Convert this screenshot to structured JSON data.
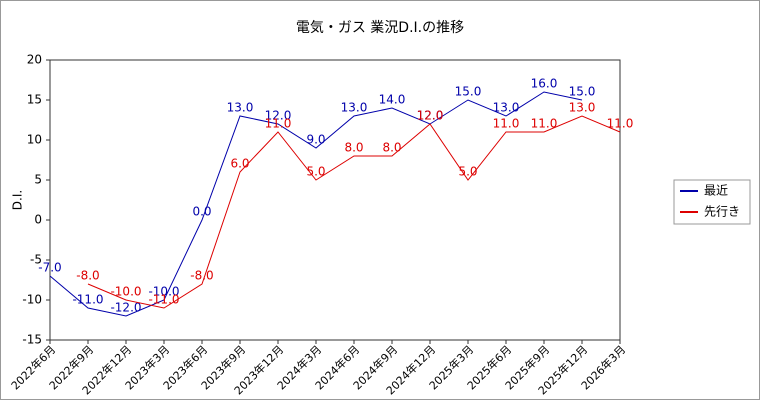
{
  "chart_data": {
    "type": "line",
    "title": "電気・ガス 業況D.I.の推移",
    "y_label": "D.I.",
    "categories": [
      "2022年6月",
      "2022年9月",
      "2022年12月",
      "2023年3月",
      "2023年6月",
      "2023年9月",
      "2023年12月",
      "2024年3月",
      "2024年6月",
      "2024年9月",
      "2024年12月",
      "2025年3月",
      "2025年6月",
      "2025年9月",
      "2025年12月",
      "2026年3月"
    ],
    "series": [
      {
        "name": "最近",
        "color": "#0000aa",
        "values": [
          -7,
          -11,
          -12,
          -10,
          0,
          13,
          12,
          9,
          13,
          14,
          12,
          15,
          13,
          16,
          15,
          null
        ],
        "value_labels": [
          "-7.0",
          "-11.0",
          "-12.0",
          "-10.0",
          "0.0",
          "13.0",
          "12.0",
          "9.0",
          "13.0",
          "14.0",
          "12.0",
          "15.0",
          "13.0",
          "16.0",
          "15.0",
          null
        ]
      },
      {
        "name": "先行き",
        "color": "#dd0000",
        "values": [
          null,
          -8,
          -10,
          -11,
          -8,
          6,
          11,
          5,
          8,
          8,
          12,
          5,
          11,
          11,
          13,
          11
        ],
        "value_labels": [
          null,
          "-8.0",
          "-10.0",
          "-11.0",
          "-8.0",
          "6.0",
          "11.0",
          "5.0",
          "8.0",
          "8.0",
          "12.0",
          "5.0",
          "11.0",
          "11.0",
          "13.0",
          "11.0"
        ]
      }
    ],
    "ylim": [
      -15,
      20
    ],
    "yticks": [
      -15,
      -10,
      -5,
      0,
      5,
      10,
      15,
      20
    ],
    "grid": false,
    "legend": "right"
  }
}
